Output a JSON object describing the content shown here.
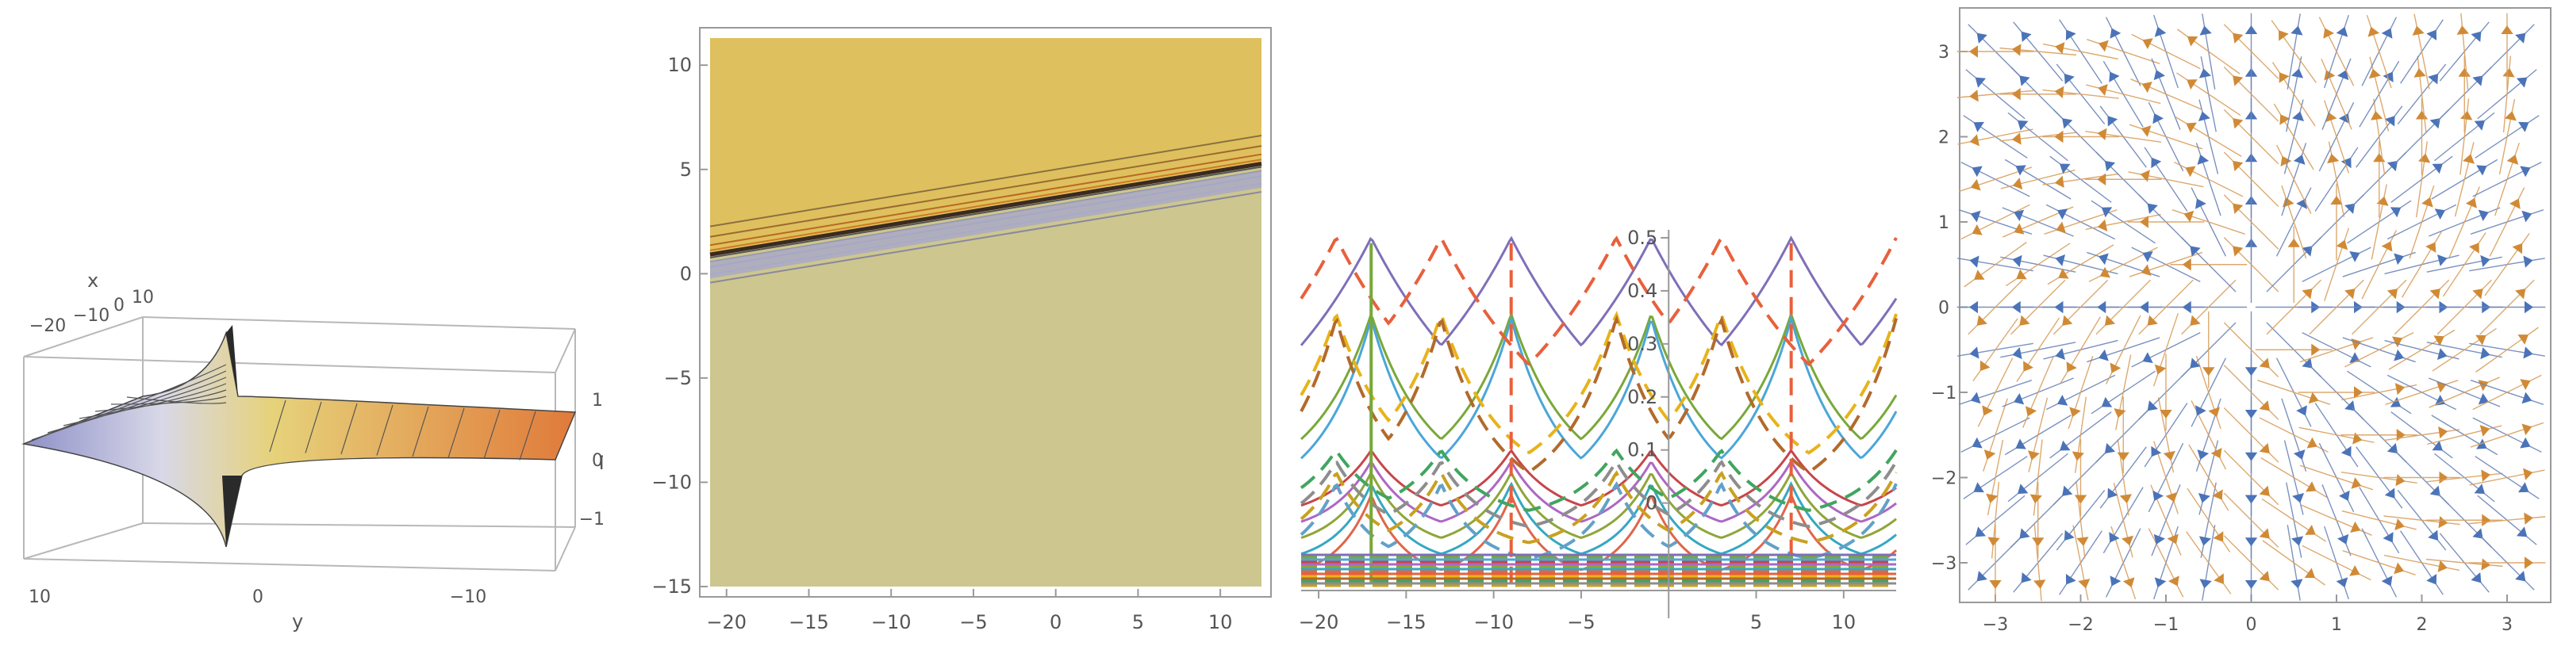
{
  "chart_data": [
    {
      "type": "surface3d",
      "axis_labels": {
        "x": "x",
        "y": "y",
        "z": "Γ"
      },
      "x_ticks": [
        "−20",
        "−10",
        "0",
        "10"
      ],
      "y_ticks": [
        "10",
        "0",
        "−10"
      ],
      "z_ticks": [
        "1",
        "0",
        "−1"
      ],
      "colors": {
        "low": "#8e90c8",
        "mid": "#e6d27a",
        "high": "#e07a3a"
      }
    },
    {
      "type": "contour",
      "xlim": [
        -21,
        12.5
      ],
      "ylim": [
        -15,
        11.3
      ],
      "x_ticks": [
        -20,
        -15,
        -10,
        -5,
        0,
        5,
        10
      ],
      "y_ticks": [
        10,
        5,
        0,
        -5,
        -10,
        -15
      ],
      "boundary_line": {
        "slope": 0.13,
        "intercept_at_x0": 3.6
      },
      "colors": {
        "upper": "#dfc05e",
        "lower": "#cdc68f",
        "band": "#a7a8c8"
      }
    },
    {
      "type": "line",
      "xlim": [
        -21,
        13
      ],
      "ylim": [
        -0.15,
        0.5
      ],
      "x_ticks": [
        -20,
        -15,
        -10,
        -5,
        5,
        10
      ],
      "y_ticks": [
        0.5,
        0.4,
        0.3,
        0.2,
        0.1,
        0
      ],
      "y_tick_labels": [
        "0.5",
        "0.4",
        "0.3",
        "0.2",
        "0.1",
        "0"
      ],
      "cusps_solid": [
        -17,
        -9,
        7
      ],
      "cusps_dashed": [
        -13,
        -3,
        13
      ],
      "period": 16,
      "solid_colors": [
        "#7f6fb8",
        "#79a83a",
        "#4ba6d8",
        "#c6464a",
        "#ad68c2",
        "#8fa53b",
        "#35a8c2",
        "#e0654a"
      ],
      "dashed_colors": [
        "#e8603c",
        "#e8b31a",
        "#b36a2b",
        "#41a55f",
        "#8d8d8d",
        "#caa020",
        "#62a1c8"
      ]
    },
    {
      "type": "vector_field",
      "xlim": [
        -3,
        3
      ],
      "ylim": [
        -3,
        3
      ],
      "x_ticks": [
        -3,
        -2,
        -1,
        0,
        1,
        2,
        3
      ],
      "y_ticks": [
        3,
        2,
        1,
        0,
        -1,
        -2,
        -3
      ],
      "x_tick_labels": [
        "−3",
        "−2",
        "−1",
        "0",
        "1",
        "2",
        "3"
      ],
      "y_tick_labels": [
        "3",
        "2",
        "1",
        "0",
        "−1",
        "−2",
        "−3"
      ],
      "grid_count": 13,
      "colors": {
        "arrows_a": "#4b73b8",
        "arrows_b": "#d08a36"
      }
    }
  ]
}
